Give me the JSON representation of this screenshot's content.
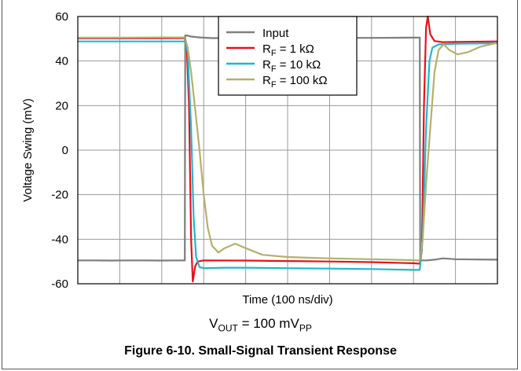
{
  "chart_data": {
    "type": "line",
    "title": "",
    "xlabel": "Time (100 ns/div)",
    "ylabel": "Voltage Swing (mV)",
    "ylim": [
      -60,
      60
    ],
    "yticks": [
      60,
      40,
      20,
      0,
      -20,
      -40,
      -60
    ],
    "xlim": [
      0,
      10
    ],
    "x_divisions": 10,
    "grid": true,
    "legend_position": "top-center",
    "series": [
      {
        "name": "Input",
        "color": "#808080",
        "points": [
          [
            0,
            -49.5
          ],
          [
            0.4,
            -49.5
          ],
          [
            0.8,
            -49.6
          ],
          [
            1.2,
            -49.5
          ],
          [
            1.6,
            -49.5
          ],
          [
            2.0,
            -49.6
          ],
          [
            2.5,
            -49.5
          ],
          [
            2.55,
            -49.5
          ],
          [
            2.56,
            51.5
          ],
          [
            2.6,
            51.5
          ],
          [
            2.7,
            51.0
          ],
          [
            2.9,
            50.6
          ],
          [
            3.2,
            50.3
          ],
          [
            4.0,
            50.4
          ],
          [
            5.0,
            50.4
          ],
          [
            6.0,
            50.4
          ],
          [
            7.0,
            50.4
          ],
          [
            8.0,
            50.5
          ],
          [
            8.15,
            50.5
          ],
          [
            8.16,
            -49.5
          ],
          [
            8.3,
            -49.5
          ],
          [
            8.5,
            -49.2
          ],
          [
            8.7,
            -48.6
          ],
          [
            9.0,
            -49.0
          ],
          [
            10,
            -49.2
          ]
        ]
      },
      {
        "name": "RF = 1 kΩ",
        "color": "#e8111b",
        "points": [
          [
            0,
            50.2
          ],
          [
            1.0,
            50.2
          ],
          [
            2.0,
            50.2
          ],
          [
            2.55,
            50.3
          ],
          [
            2.6,
            45
          ],
          [
            2.65,
            20
          ],
          [
            2.7,
            -40
          ],
          [
            2.74,
            -59
          ],
          [
            2.8,
            -52
          ],
          [
            2.86,
            -50
          ],
          [
            3.0,
            -49.5
          ],
          [
            4.0,
            -49.6
          ],
          [
            5.0,
            -49.8
          ],
          [
            6.0,
            -50.0
          ],
          [
            7.0,
            -50.3
          ],
          [
            8.0,
            -50.8
          ],
          [
            8.15,
            -51
          ],
          [
            8.2,
            -45
          ],
          [
            8.25,
            20
          ],
          [
            8.3,
            55
          ],
          [
            8.34,
            60
          ],
          [
            8.4,
            52
          ],
          [
            8.5,
            49
          ],
          [
            8.7,
            48.5
          ],
          [
            9.0,
            48.6
          ],
          [
            10,
            48.8
          ]
        ]
      },
      {
        "name": "RF = 10 kΩ",
        "color": "#1fb8cf",
        "points": [
          [
            0,
            48.8
          ],
          [
            1.0,
            48.8
          ],
          [
            2.0,
            48.8
          ],
          [
            2.55,
            48.8
          ],
          [
            2.62,
            44
          ],
          [
            2.7,
            10
          ],
          [
            2.76,
            -30
          ],
          [
            2.82,
            -48
          ],
          [
            2.9,
            -52.5
          ],
          [
            3.0,
            -53
          ],
          [
            3.5,
            -52.8
          ],
          [
            4.0,
            -52.8
          ],
          [
            5.0,
            -53.0
          ],
          [
            6.0,
            -53.2
          ],
          [
            7.0,
            -53.4
          ],
          [
            8.0,
            -53.8
          ],
          [
            8.15,
            -53.8
          ],
          [
            8.22,
            -40
          ],
          [
            8.3,
            10
          ],
          [
            8.38,
            40
          ],
          [
            8.45,
            46
          ],
          [
            8.6,
            47.5
          ],
          [
            9.0,
            47.8
          ],
          [
            10,
            48.0
          ]
        ]
      },
      {
        "name": "RF = 100 kΩ",
        "color": "#b5b06c",
        "points": [
          [
            0,
            50.5
          ],
          [
            1.0,
            50.5
          ],
          [
            2.0,
            50.6
          ],
          [
            2.55,
            50.6
          ],
          [
            2.62,
            46
          ],
          [
            2.7,
            35
          ],
          [
            2.8,
            18
          ],
          [
            2.9,
            0
          ],
          [
            3.0,
            -20
          ],
          [
            3.1,
            -35
          ],
          [
            3.2,
            -43
          ],
          [
            3.35,
            -46
          ],
          [
            3.5,
            -44
          ],
          [
            3.75,
            -42
          ],
          [
            4.0,
            -44
          ],
          [
            4.4,
            -47
          ],
          [
            5.0,
            -48
          ],
          [
            6.0,
            -48.6
          ],
          [
            7.0,
            -49.0
          ],
          [
            8.0,
            -49.4
          ],
          [
            8.15,
            -49.6
          ],
          [
            8.22,
            -40
          ],
          [
            8.3,
            -15
          ],
          [
            8.4,
            10
          ],
          [
            8.5,
            35
          ],
          [
            8.6,
            45
          ],
          [
            8.72,
            47.5
          ],
          [
            8.85,
            45
          ],
          [
            9.05,
            43
          ],
          [
            9.3,
            44
          ],
          [
            9.6,
            46.5
          ],
          [
            10,
            48.2
          ]
        ]
      }
    ],
    "legend_entries": [
      {
        "main": "Input",
        "sub": "",
        "rest": ""
      },
      {
        "main": "R",
        "sub": "F",
        "rest": " = 1 kΩ"
      },
      {
        "main": "R",
        "sub": "F",
        "rest": " = 10 kΩ"
      },
      {
        "main": "R",
        "sub": "F",
        "rest": " = 100 kΩ"
      }
    ]
  },
  "condition": {
    "pre": "V",
    "sub1": "OUT",
    "mid": " = 100 mV",
    "sub2": "PP"
  },
  "figure_caption": "Figure 6-10. Small-Signal Transient Response"
}
